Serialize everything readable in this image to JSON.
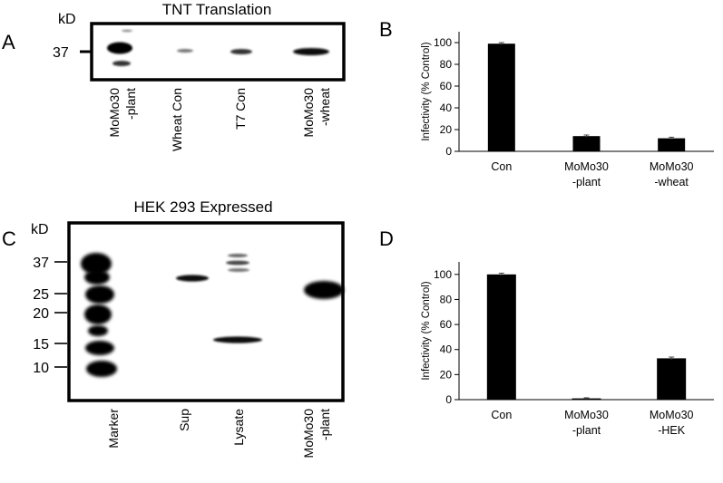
{
  "figure": {
    "panels": {
      "A": {
        "letter": "A",
        "title": "TNT Translation",
        "kd_label": "kD",
        "markers": [
          "37"
        ],
        "lanes": [
          {
            "line1": "MoMo30",
            "line2": "-plant"
          },
          {
            "line1": "Wheat Con",
            "line2": ""
          },
          {
            "line1": "T7 Con",
            "line2": ""
          },
          {
            "line1": "MoMo30",
            "line2": "-wheat"
          }
        ]
      },
      "B": {
        "letter": "B"
      },
      "C": {
        "letter": "C",
        "title": "HEK 293 Expressed",
        "kd_label": "kD",
        "markers": [
          "37",
          "25",
          "20",
          "15",
          "10"
        ],
        "lanes": [
          {
            "line1": "Marker",
            "line2": ""
          },
          {
            "line1": "Sup",
            "line2": ""
          },
          {
            "line1": "Lysate",
            "line2": ""
          },
          {
            "line1": "MoMo30",
            "line2": "-plant"
          }
        ]
      },
      "D": {
        "letter": "D"
      }
    }
  },
  "chart_data": [
    {
      "panel": "B",
      "type": "bar",
      "ylabel": "Infectivity (% Control)",
      "ylim": [
        0,
        110
      ],
      "yticks": [
        0,
        20,
        40,
        60,
        80,
        100
      ],
      "categories": [
        {
          "line1": "Con",
          "line2": ""
        },
        {
          "line1": "MoMo30",
          "line2": "-plant"
        },
        {
          "line1": "MoMo30",
          "line2": "-wheat"
        }
      ],
      "values": [
        99,
        14,
        12
      ],
      "errors": [
        1,
        1,
        1
      ],
      "color": "#000000",
      "grid": false
    },
    {
      "panel": "D",
      "type": "bar",
      "ylabel": "Infectivity (% Control)",
      "ylim": [
        0,
        110
      ],
      "yticks": [
        0,
        20,
        40,
        60,
        80,
        100
      ],
      "categories": [
        {
          "line1": "Con",
          "line2": ""
        },
        {
          "line1": "MoMo30",
          "line2": "-plant"
        },
        {
          "line1": "MoMo30",
          "line2": "-HEK"
        }
      ],
      "values": [
        100,
        1,
        33
      ],
      "errors": [
        1,
        0.5,
        1
      ],
      "color": "#000000",
      "grid": false
    }
  ]
}
